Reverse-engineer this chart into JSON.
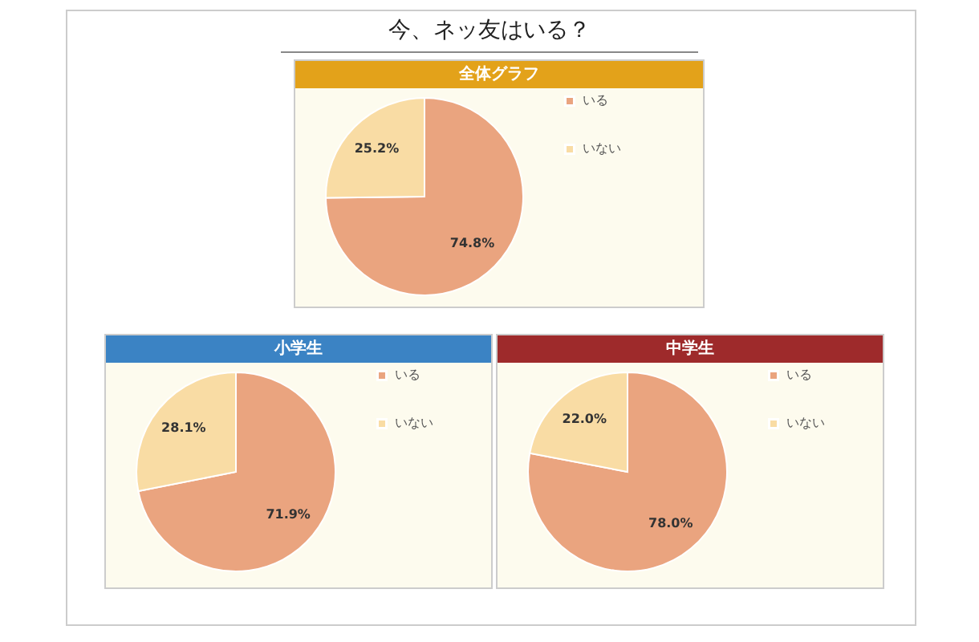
{
  "chart_data": [
    {
      "type": "other",
      "title": "今、ネッ友はいる？"
    },
    {
      "type": "pie",
      "title": "全体グラフ",
      "categories": [
        "いる",
        "いない"
      ],
      "values": [
        74.8,
        25.2
      ],
      "colors": [
        "#eaa47f",
        "#f9dca4"
      ],
      "value_labels": [
        "74.8%",
        "25.2%"
      ],
      "legend": "right"
    },
    {
      "type": "pie",
      "title": "小学生",
      "categories": [
        "いる",
        "いない"
      ],
      "values": [
        71.9,
        28.1
      ],
      "colors": [
        "#eaa47f",
        "#f9dca4"
      ],
      "value_labels": [
        "71.9%",
        "28.1%"
      ],
      "legend": "right"
    },
    {
      "type": "pie",
      "title": "中学生",
      "categories": [
        "いる",
        "いない"
      ],
      "values": [
        78.0,
        22.0
      ],
      "colors": [
        "#eaa47f",
        "#f9dca4"
      ],
      "value_labels": [
        "78.0%",
        "22.0%"
      ],
      "legend": "right"
    }
  ]
}
